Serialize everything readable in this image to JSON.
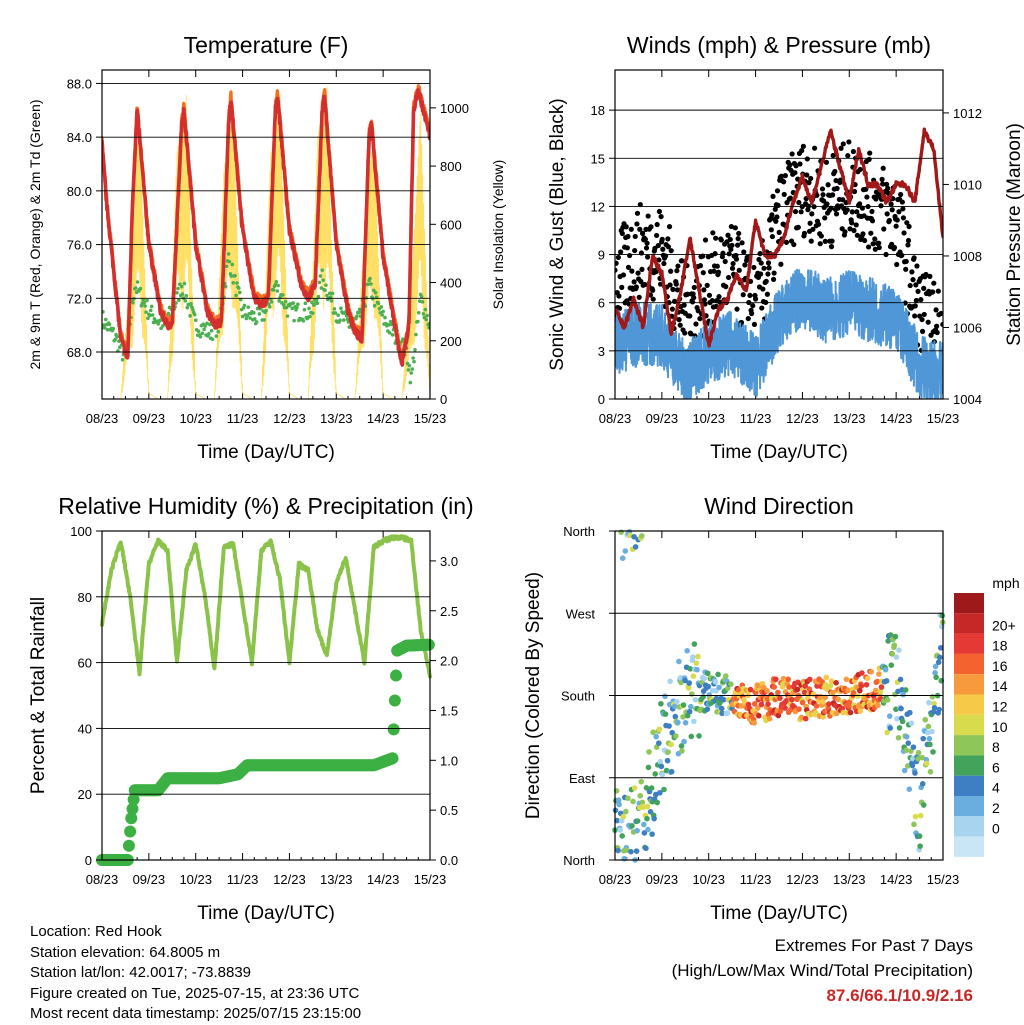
{
  "chart_data": [
    {
      "type": "line",
      "title": "Temperature (F)",
      "xlabel": "Time (Day/UTC)",
      "ylabel": "2m & 9m T (Red, Orange) & 2m Td (Green)",
      "y2label": "Solar Insolation (Yellow)",
      "x_ticks": [
        "08/23",
        "09/23",
        "10/23",
        "11/23",
        "12/23",
        "13/23",
        "14/23",
        "15/23"
      ],
      "ylim": [
        64.5,
        89.0
      ],
      "y_ticks": [
        "68.0",
        "72.0",
        "76.0",
        "80.0",
        "84.0",
        "88.0"
      ],
      "y2lim": [
        0,
        1130
      ],
      "y2_ticks": [
        "0",
        "200",
        "400",
        "600",
        "800",
        "1000"
      ],
      "grid": true,
      "colors": {
        "t2m": "#d32f2f",
        "t9m": "#f36f21",
        "td2m": "#4caf50",
        "solar": "#ffe066"
      },
      "series": [
        {
          "key": "t2m",
          "x": [
            0,
            0.1,
            0.25,
            0.4,
            0.55,
            0.65,
            0.75,
            1.0,
            1.25,
            1.4,
            1.5,
            1.7,
            1.75,
            2.0,
            2.25,
            2.4,
            2.55,
            2.7,
            2.75,
            3.0,
            3.25,
            3.4,
            3.55,
            3.7,
            3.75,
            4.0,
            4.25,
            4.4,
            4.55,
            4.7,
            4.75,
            5.0,
            5.25,
            5.4,
            5.55,
            5.7,
            5.75,
            6.0,
            6.25,
            6.4,
            6.55,
            6.65,
            6.75,
            7.0
          ],
          "y": [
            83.5,
            79,
            74,
            69,
            67.5,
            79,
            86,
            76,
            71,
            70,
            70,
            85,
            86,
            76,
            71,
            70,
            70.2,
            85,
            86.8,
            77,
            72,
            71.5,
            72,
            86,
            87,
            77,
            73,
            72,
            73,
            86,
            87,
            76,
            71,
            69.5,
            69,
            84,
            85,
            75,
            70,
            67,
            70,
            86,
            87.5,
            84
          ]
        },
        {
          "key": "td2m",
          "x": [
            0,
            0.3,
            0.5,
            0.7,
            1.0,
            1.3,
            1.5,
            1.7,
            2.0,
            2.3,
            2.5,
            2.7,
            3.0,
            3.3,
            3.5,
            3.7,
            4.0,
            4.3,
            4.5,
            4.7,
            5.0,
            5.3,
            5.5,
            5.7,
            6.0,
            6.3,
            6.5,
            6.6,
            6.8,
            7.0
          ],
          "y": [
            70.5,
            69,
            67.5,
            73,
            71,
            70,
            71,
            73,
            70,
            69.5,
            70,
            75,
            71,
            70.5,
            71,
            73,
            71,
            71,
            71,
            73.5,
            71,
            70,
            70.5,
            73,
            70.5,
            69,
            68,
            66,
            72,
            70
          ]
        },
        {
          "key": "solar",
          "x": [
            0,
            0.4,
            0.6,
            0.8,
            1.0,
            1.2,
            1.4,
            1.6,
            1.8,
            2.0,
            2.2,
            2.4,
            2.6,
            2.8,
            3.0,
            3.2,
            3.4,
            3.6,
            3.8,
            4.0,
            4.2,
            4.4,
            4.6,
            4.8,
            5.0,
            5.2,
            5.4,
            5.6,
            5.8,
            6.0,
            6.2,
            6.4,
            6.6,
            6.8,
            7.0
          ],
          "y": [
            0,
            0,
            450,
            1000,
            20,
            0,
            0,
            850,
            1050,
            20,
            0,
            0,
            800,
            1000,
            20,
            0,
            0,
            850,
            1050,
            20,
            0,
            0,
            900,
            1080,
            20,
            0,
            0,
            600,
            950,
            20,
            0,
            0,
            400,
            1000,
            20
          ]
        }
      ]
    },
    {
      "type": "scatter",
      "title": "Winds (mph) & Pressure (mb)",
      "xlabel": "Time (Day/UTC)",
      "ylabel": "Sonic Wind & Gust (Blue, Black)",
      "y2label": "Station Pressure (Maroon)",
      "x_ticks": [
        "08/23",
        "09/23",
        "10/23",
        "11/23",
        "12/23",
        "13/23",
        "14/23",
        "15/23"
      ],
      "ylim": [
        0,
        20.5
      ],
      "y_ticks": [
        "0",
        "3",
        "6",
        "9",
        "12",
        "15",
        "18"
      ],
      "y2lim": [
        1004,
        1013.2
      ],
      "y2_ticks": [
        "1004",
        "1006",
        "1008",
        "1010",
        "1012"
      ],
      "grid": true,
      "colors": {
        "wind": "#4f97d6",
        "gust": "#000000",
        "pressure": "#a01818"
      },
      "series": [
        {
          "key": "wind",
          "x": [
            0,
            0.5,
            1.0,
            1.5,
            2.0,
            2.5,
            3.0,
            3.5,
            4.0,
            4.5,
            5.0,
            5.5,
            6.0,
            6.5,
            7.0
          ],
          "y": [
            3.5,
            4,
            4,
            1.5,
            3,
            3.5,
            2,
            5,
            6.5,
            5.5,
            6,
            5.5,
            5,
            2,
            1.5
          ]
        },
        {
          "key": "gust",
          "x": [
            0,
            0.5,
            1.0,
            1.5,
            2.0,
            2.5,
            3.0,
            3.5,
            4.0,
            4.5,
            5.0,
            5.5,
            6.0,
            6.5,
            7.0
          ],
          "y": [
            6,
            8,
            8,
            4,
            6,
            7,
            4,
            10,
            12,
            11,
            12,
            11,
            10,
            4,
            3
          ]
        },
        {
          "key": "pressure",
          "x": [
            0,
            0.2,
            0.4,
            0.6,
            0.8,
            1.0,
            1.2,
            1.4,
            1.6,
            1.8,
            2.0,
            2.2,
            2.4,
            2.6,
            2.8,
            3.0,
            3.2,
            3.4,
            3.6,
            3.8,
            4.0,
            4.2,
            4.4,
            4.6,
            4.8,
            5.0,
            5.2,
            5.4,
            5.6,
            5.8,
            6.0,
            6.2,
            6.4,
            6.6,
            6.8,
            7.0
          ],
          "y": [
            1006.5,
            1006,
            1006.8,
            1006,
            1008,
            1007.5,
            1005.8,
            1007,
            1008.5,
            1007,
            1005.5,
            1006.5,
            1006.8,
            1007.5,
            1007,
            1009,
            1008,
            1008,
            1008.5,
            1009.5,
            1010.2,
            1009.5,
            1010.5,
            1011.5,
            1010.5,
            1009.5,
            1011,
            1010,
            1010,
            1009.5,
            1010,
            1010,
            1009.5,
            1011.5,
            1011,
            1008.5
          ]
        }
      ]
    },
    {
      "type": "line",
      "title": "Relative Humidity (%) & Precipitation (in)",
      "xlabel": "Time (Day/UTC)",
      "ylabel": "Percent & Total Rainfall",
      "x_ticks": [
        "08/23",
        "09/23",
        "10/23",
        "11/23",
        "12/23",
        "13/23",
        "14/23",
        "15/23"
      ],
      "ylim": [
        0,
        100
      ],
      "y_ticks": [
        "0",
        "20",
        "40",
        "60",
        "80",
        "100"
      ],
      "y2lim": [
        0,
        3.3
      ],
      "y2_ticks": [
        "0.0",
        "0.5",
        "1.0",
        "1.5",
        "2.0",
        "2.5",
        "3.0"
      ],
      "grid": true,
      "colors": {
        "rh": "#8bc34a",
        "precip": "#3cb043"
      },
      "series": [
        {
          "key": "rh",
          "x": [
            0,
            0.2,
            0.4,
            0.6,
            0.8,
            1.0,
            1.2,
            1.4,
            1.6,
            1.8,
            2.0,
            2.2,
            2.4,
            2.6,
            2.8,
            3.0,
            3.2,
            3.4,
            3.6,
            3.8,
            4.0,
            4.2,
            4.4,
            4.6,
            4.8,
            5.0,
            5.2,
            5.4,
            5.6,
            5.8,
            6.0,
            6.2,
            6.4,
            6.6,
            6.8,
            7.0
          ],
          "y": [
            72,
            88,
            97,
            80,
            57,
            90,
            97,
            94,
            60,
            88,
            96,
            80,
            58,
            95,
            96,
            78,
            60,
            94,
            97,
            85,
            60,
            90,
            88,
            70,
            62,
            84,
            92,
            76,
            60,
            95,
            97,
            98,
            98,
            97,
            70,
            56
          ]
        },
        {
          "key": "precip",
          "x": [
            0,
            0.55,
            0.62,
            0.7,
            1.2,
            1.4,
            2.5,
            2.9,
            3.1,
            5.8,
            6.2,
            6.25,
            6.3,
            6.5,
            7.0
          ],
          "y": [
            0,
            0,
            0.4,
            0.7,
            0.7,
            0.82,
            0.82,
            0.86,
            0.95,
            0.95,
            1.02,
            1.6,
            2.1,
            2.15,
            2.16
          ]
        }
      ]
    },
    {
      "type": "scatter",
      "title": "Wind Direction",
      "xlabel": "Time (Day/UTC)",
      "ylabel": "Direction (Colored By Speed)",
      "x_ticks": [
        "08/23",
        "09/23",
        "10/23",
        "11/23",
        "12/23",
        "13/23",
        "14/23",
        "15/23"
      ],
      "y_ticks": [
        "North",
        "East",
        "South",
        "West",
        "North"
      ],
      "ylim": [
        0,
        360
      ],
      "grid": true,
      "legend_title": "mph",
      "legend_labels": [
        "20+",
        "18",
        "16",
        "14",
        "12",
        "10",
        "8",
        "6",
        "4",
        "2",
        "0"
      ],
      "legend_colors": [
        "#9e1a1a",
        "#c62828",
        "#e53935",
        "#f4622f",
        "#f79a3e",
        "#f7c948",
        "#d8dc4c",
        "#8fc65a",
        "#43a35b",
        "#3d7fc2",
        "#6aaee0",
        "#a9d4f0",
        "#c9e6f7"
      ],
      "legend_placement": "right",
      "series": [
        {
          "key": "direction",
          "x": [
            0,
            0.5,
            1.0,
            1.5,
            2.0,
            2.5,
            3.0,
            3.5,
            4.0,
            4.5,
            5.0,
            5.5,
            6.0,
            6.5,
            7.0
          ],
          "y": [
            20,
            30,
            120,
            180,
            185,
            180,
            170,
            180,
            175,
            178,
            180,
            185,
            200,
            60,
            250
          ]
        }
      ]
    }
  ],
  "info": {
    "location": "Location: Red Hook",
    "elevation": "Station elevation: 64.8005 m",
    "latlon": "Station lat/lon: 42.0017; -73.8839",
    "created": "Figure created on Tue, 2025-07-15, at 23:36 UTC",
    "recent": "Most recent data timestamp: 2025/07/15 23:15:00"
  },
  "extremes": {
    "heading": "Extremes For Past 7 Days",
    "subheading": "(High/Low/Max Wind/Total Precipitation)",
    "values": "87.6/66.1/10.9/2.16"
  }
}
